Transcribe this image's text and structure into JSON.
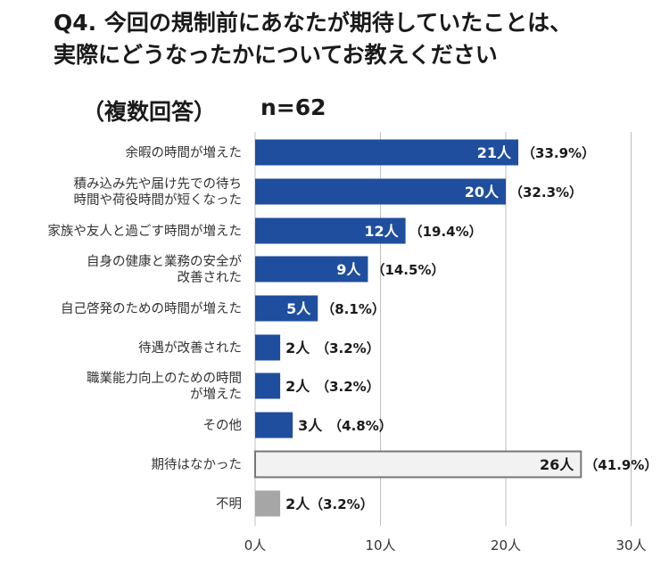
{
  "title_lines": [
    "Q4. 今回の規制前にあなたが期待していたことは、",
    "実際にどうなったかについてお教えください"
  ],
  "subtitle_note": "（複数回答）",
  "sample_size": "n=62",
  "colors": {
    "bar": "#1f4e9e",
    "bar_none": "#f2f2f2",
    "bar_none_border": "#777777",
    "bar_unknown": "#a6a6a6",
    "grid": "#bfbfbf"
  },
  "chart_data": {
    "type": "bar",
    "orientation": "horizontal",
    "categories": [
      [
        "余暇の時間が増えた"
      ],
      [
        "積み込み先や届け先での待ち",
        "時間や荷役時間が短くなった"
      ],
      [
        "家族や友人と過ごす時間が増えた"
      ],
      [
        "自身の健康と業務の安全が",
        "改善された"
      ],
      [
        "自己啓発のための時間が増えた"
      ],
      [
        "待遇が改善された"
      ],
      [
        "職業能力向上のための時間",
        "が増えた"
      ],
      [
        "その他"
      ],
      [
        "期待はなかった"
      ],
      [
        "不明"
      ]
    ],
    "values": [
      21,
      20,
      12,
      9,
      5,
      2,
      2,
      3,
      26,
      2
    ],
    "value_labels": [
      "21人",
      "20人",
      "12人",
      "9人",
      "5人",
      "2人",
      "2人",
      "3人",
      "26人",
      "2人"
    ],
    "percent_labels": [
      "（33.9%）",
      "（32.3%）",
      "（19.4%）",
      "（14.5%）",
      "（8.1%）",
      "（3.2%）",
      "（3.2%）",
      "（4.8%）",
      "（41.9%）",
      "（3.2%）"
    ],
    "bar_styles": [
      "main",
      "main",
      "main",
      "main",
      "main",
      "main",
      "main",
      "main",
      "none",
      "unknown"
    ],
    "xlim": [
      0,
      30
    ],
    "xticks": [
      0,
      10,
      20,
      30
    ],
    "xtick_labels": [
      "0人",
      "10人",
      "20人",
      "30人"
    ],
    "grid": true
  }
}
